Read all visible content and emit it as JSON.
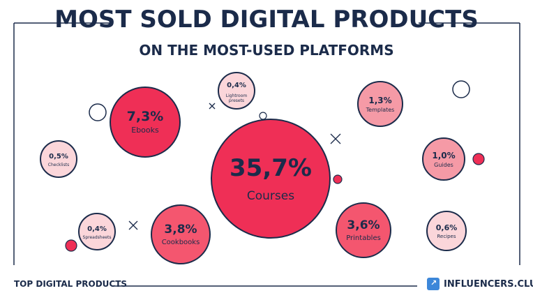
{
  "header": {
    "title": "MOST SOLD DIGITAL PRODUCTS",
    "subtitle": "ON THE MOST-USED PLATFORMS"
  },
  "footer": {
    "left_label": "TOP DIGITAL PRODUCTS",
    "brand": "INFLUENCERS.CLUB"
  },
  "colors": {
    "navy": "#1b2b4a",
    "red_strong": "#ef2f56",
    "red_mid": "#f4566f",
    "pink": "#f59aa6",
    "pink_light": "#fbd6da",
    "brand_blue": "#3d87d9"
  },
  "chart_data": {
    "type": "bubble",
    "title": "MOST SOLD DIGITAL PRODUCTS",
    "subtitle": "ON THE MOST-USED PLATFORMS",
    "items": [
      {
        "label": "Courses",
        "value_text": "35,7%",
        "value": 35.7
      },
      {
        "label": "Ebooks",
        "value_text": "7,3%",
        "value": 7.3
      },
      {
        "label": "Cookbooks",
        "value_text": "3,8%",
        "value": 3.8
      },
      {
        "label": "Printables",
        "value_text": "3,6%",
        "value": 3.6
      },
      {
        "label": "Templates",
        "value_text": "1,3%",
        "value": 1.3
      },
      {
        "label": "Guides",
        "value_text": "1,0%",
        "value": 1.0
      },
      {
        "label": "Recipes",
        "value_text": "0,6%",
        "value": 0.6
      },
      {
        "label": "Checklists",
        "value_text": "0,5%",
        "value": 0.5
      },
      {
        "label": "Lightroom presets",
        "value_text": "0,4%",
        "value": 0.4
      },
      {
        "label": "Spreadsheets",
        "value_text": "0,4%",
        "value": 0.4
      }
    ]
  }
}
